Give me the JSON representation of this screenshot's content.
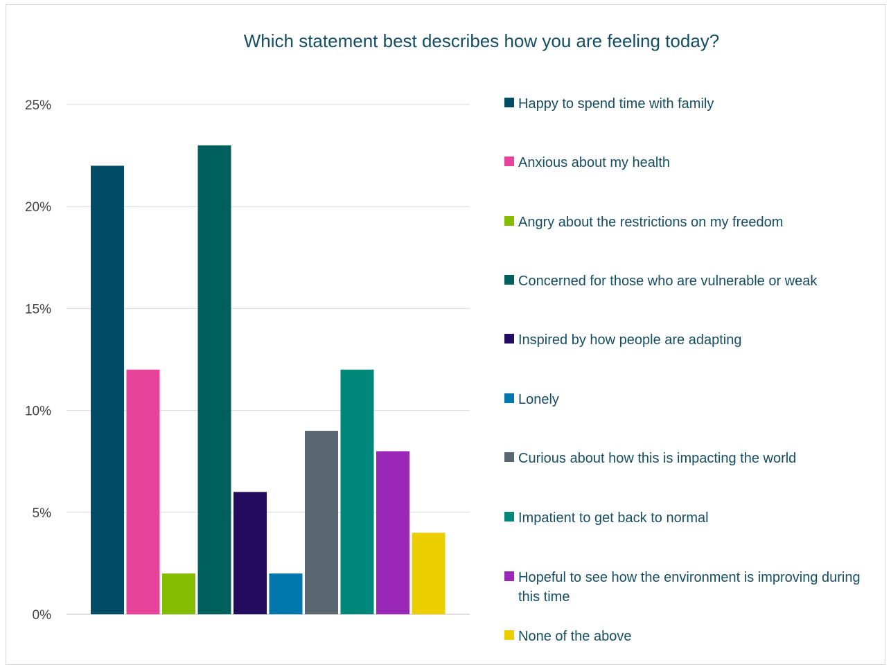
{
  "chart_data": {
    "type": "bar",
    "title": "Which statement best describes how you are feeling today?",
    "xlabel": "",
    "ylabel": "",
    "ylim": [
      0,
      25
    ],
    "y_ticks": [
      "0%",
      "5%",
      "10%",
      "15%",
      "20%",
      "25%"
    ],
    "y_tick_values": [
      0,
      5,
      10,
      15,
      20,
      25
    ],
    "grid": true,
    "legend_position": "right",
    "series": [
      {
        "name": "Happy to spend time with family",
        "value": 22,
        "color": "#004c66"
      },
      {
        "name": "Anxious about my health",
        "value": 12,
        "color": "#e8439a"
      },
      {
        "name": "Angry about the restrictions on my freedom",
        "value": 2,
        "color": "#84bd00"
      },
      {
        "name": "Concerned for those who are vulnerable or weak",
        "value": 23,
        "color": "#00605d"
      },
      {
        "name": "Inspired by how people are adapting",
        "value": 6,
        "color": "#230b5f"
      },
      {
        "name": "Lonely",
        "value": 2,
        "color": "#0077ac"
      },
      {
        "name": "Curious about how this is impacting the world",
        "value": 9,
        "color": "#5b6770"
      },
      {
        "name": "Impatient to get back to normal",
        "value": 12,
        "color": "#00877a"
      },
      {
        "name": "Hopeful to see how the environment is improving during this time",
        "value": 8,
        "color": "#9a27b8"
      },
      {
        "name": "None of the above",
        "value": 4,
        "color": "#ebcd00"
      }
    ]
  }
}
